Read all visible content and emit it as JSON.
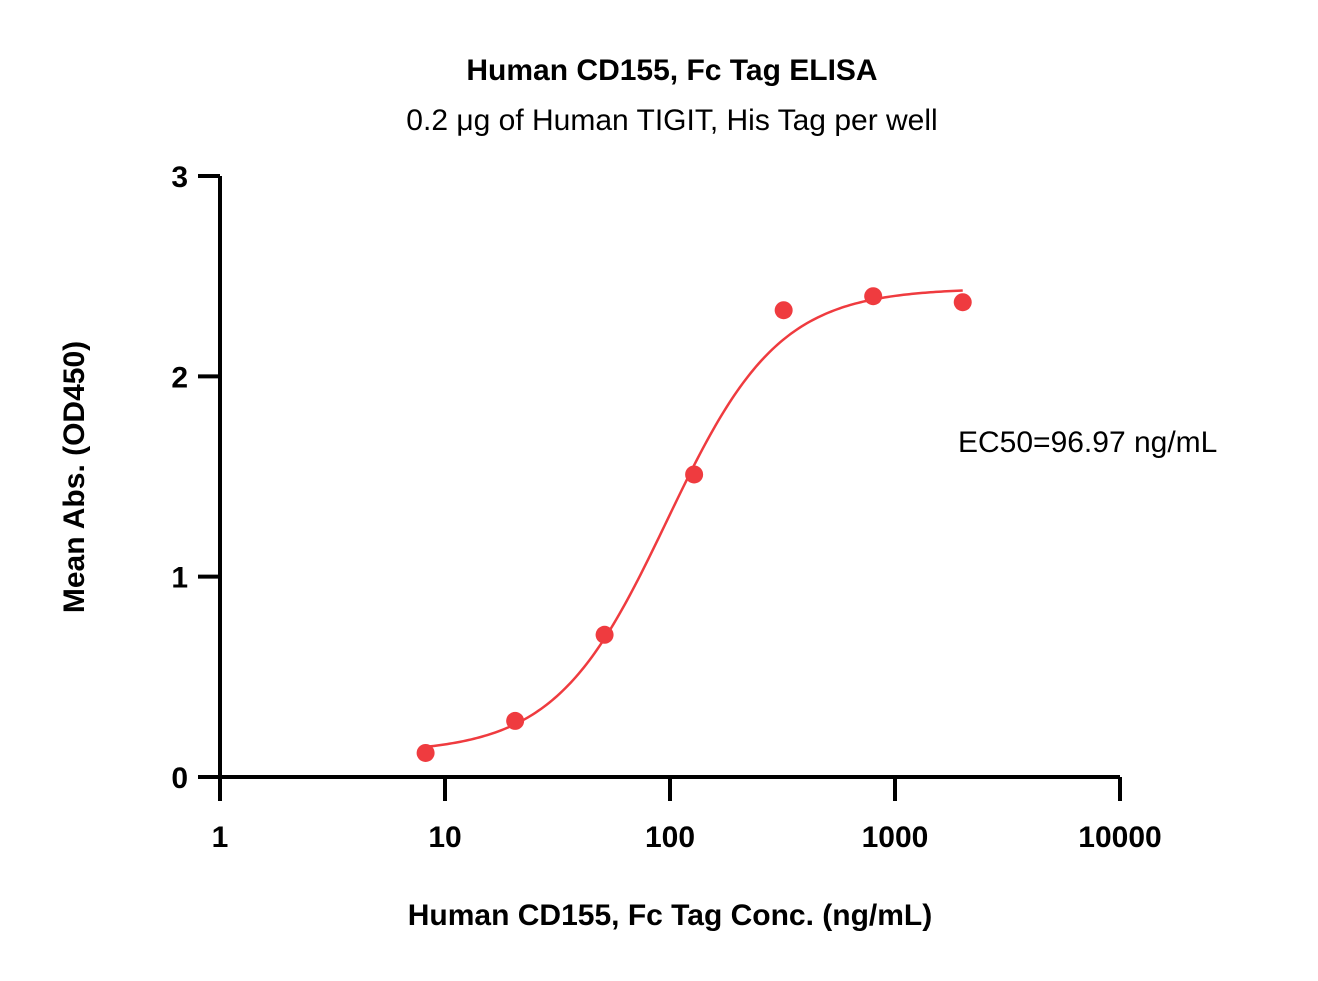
{
  "chart_data": {
    "type": "scatter",
    "title": "Human CD155, Fc Tag ELISA",
    "subtitle": "0.2 μg of Human TIGIT, His Tag per well",
    "xlabel": "Human CD155, Fc Tag Conc. (ng/mL)",
    "ylabel": "Mean Abs. (OD450)",
    "x_scale": "log",
    "xlim": [
      1,
      10000
    ],
    "ylim": [
      0,
      3
    ],
    "x_ticks": [
      1,
      10,
      100,
      1000,
      10000
    ],
    "x_tick_labels": [
      "1",
      "10",
      "100",
      "1000",
      "10000"
    ],
    "y_ticks": [
      0,
      1,
      2,
      3
    ],
    "y_tick_labels": [
      "0",
      "1",
      "2",
      "3"
    ],
    "grid": false,
    "annotation": "EC50=96.97 ng/mL",
    "series": [
      {
        "color": "#ef3b3f",
        "points": [
          {
            "x": 8.2,
            "y": 0.12
          },
          {
            "x": 20.5,
            "y": 0.28
          },
          {
            "x": 51.2,
            "y": 0.71
          },
          {
            "x": 128,
            "y": 1.51
          },
          {
            "x": 320,
            "y": 2.33
          },
          {
            "x": 800,
            "y": 2.4
          },
          {
            "x": 2000,
            "y": 2.37
          }
        ],
        "fit": {
          "model": "4PL",
          "bottom": 0.12,
          "top": 2.44,
          "ec50": 96.97,
          "hill": 1.75,
          "x_range": [
            8.2,
            2000
          ]
        }
      }
    ]
  }
}
